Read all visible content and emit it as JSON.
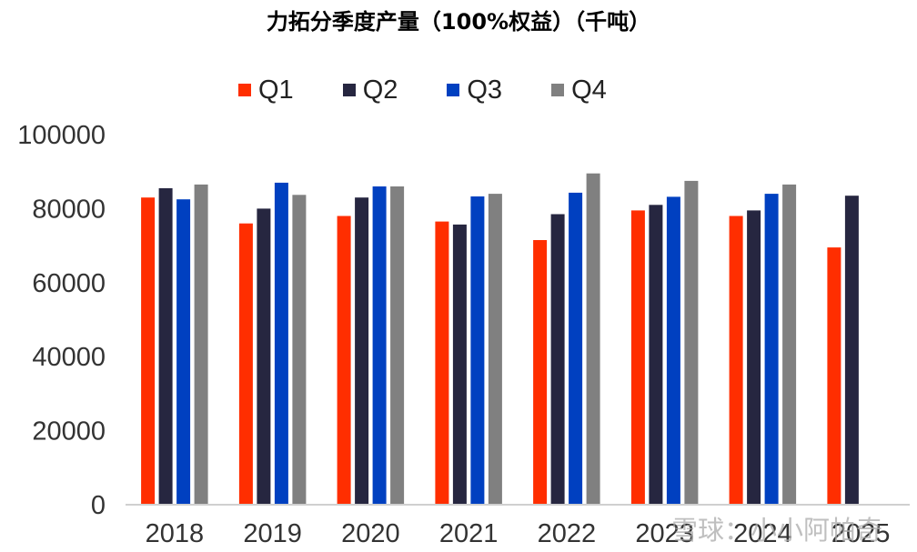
{
  "chart_data": {
    "type": "bar",
    "title": "力拓分季度产量（100%权益）（千吨）",
    "categories": [
      "2018",
      "2019",
      "2020",
      "2021",
      "2022",
      "2023",
      "2024",
      "2025"
    ],
    "series": [
      {
        "name": "Q1",
        "color": "#ff2e00",
        "values": [
          83000,
          76000,
          78000,
          76500,
          71500,
          79500,
          78000,
          69500
        ]
      },
      {
        "name": "Q2",
        "color": "#262640",
        "values": [
          85500,
          80000,
          83000,
          75700,
          78500,
          81000,
          79500,
          83500
        ]
      },
      {
        "name": "Q3",
        "color": "#0040c0",
        "values": [
          82500,
          87000,
          86000,
          83300,
          84300,
          83200,
          84000,
          null
        ]
      },
      {
        "name": "Q4",
        "color": "#808080",
        "values": [
          86500,
          83700,
          86000,
          84000,
          89500,
          87500,
          86500,
          null
        ]
      }
    ],
    "yticks": [
      "0",
      "20000",
      "40000",
      "60000",
      "80000",
      "100000"
    ],
    "ylim": [
      0,
      100000
    ],
    "xlabel": "",
    "ylabel": "",
    "legend_position": "top",
    "grid": false
  },
  "watermark": "雪球：小小阿帕奇"
}
